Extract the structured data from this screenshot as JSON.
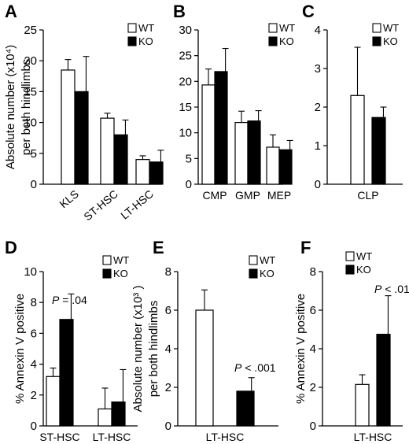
{
  "legend_labels": [
    "WT",
    "KO"
  ],
  "chart_data": [
    {
      "panel": "A",
      "type": "bar",
      "ylabel_line1": "Absolute number (x10⁴)",
      "ylabel_line2": "per both hindlimbs",
      "ylim": [
        0,
        25
      ],
      "yticks": [
        "0",
        "5",
        "10",
        "15",
        "20",
        "25"
      ],
      "categories": [
        "KLS",
        "ST-HSC",
        "LT-HSC"
      ],
      "series": [
        {
          "name": "WT",
          "values": [
            18.5,
            10.7,
            4.0
          ],
          "errors": [
            1.7,
            0.8,
            0.6
          ]
        },
        {
          "name": "KO",
          "values": [
            15.0,
            8.0,
            3.6
          ],
          "errors": [
            5.7,
            2.4,
            1.9
          ]
        }
      ],
      "xtick_rotation": -40,
      "annotation": ""
    },
    {
      "panel": "B",
      "type": "bar",
      "ylabel_line1": "",
      "ylabel_line2": "",
      "ylim": [
        0,
        30
      ],
      "yticks": [
        "0",
        "5",
        "10",
        "15",
        "20",
        "25",
        "30"
      ],
      "categories": [
        "CMP",
        "GMP",
        "MEP"
      ],
      "series": [
        {
          "name": "WT",
          "values": [
            19.3,
            12.0,
            7.2
          ],
          "errors": [
            3.1,
            2.2,
            2.4
          ]
        },
        {
          "name": "KO",
          "values": [
            21.9,
            12.3,
            6.7
          ],
          "errors": [
            4.5,
            2.0,
            1.8
          ]
        }
      ],
      "xtick_rotation": 0,
      "annotation": ""
    },
    {
      "panel": "C",
      "type": "bar",
      "ylabel_line1": "",
      "ylabel_line2": "",
      "ylim": [
        0,
        4
      ],
      "yticks": [
        "0",
        "1",
        "2",
        "3",
        "4"
      ],
      "categories": [
        "CLP"
      ],
      "series": [
        {
          "name": "WT",
          "values": [
            2.3
          ],
          "errors": [
            1.25
          ]
        },
        {
          "name": "KO",
          "values": [
            1.73
          ],
          "errors": [
            0.27
          ]
        }
      ],
      "xtick_rotation": 0,
      "annotation": ""
    },
    {
      "panel": "D",
      "type": "bar",
      "ylabel_line1": "% Annexin V positive",
      "ylabel_line2": "",
      "ylim": [
        0,
        10
      ],
      "yticks": [
        "0",
        "2",
        "4",
        "6",
        "8",
        "10"
      ],
      "categories": [
        "ST-HSC",
        "LT-HSC"
      ],
      "series": [
        {
          "name": "WT",
          "values": [
            3.2,
            1.1
          ],
          "errors": [
            0.55,
            1.35
          ]
        },
        {
          "name": "KO",
          "values": [
            6.9,
            1.55
          ],
          "errors": [
            1.65,
            2.1
          ]
        }
      ],
      "xtick_rotation": 0,
      "annotation": "P = .04"
    },
    {
      "panel": "E",
      "type": "bar",
      "ylabel_line1": "Absolute number (x10³ )",
      "ylabel_line2": "per both hindlimbs",
      "ylim": [
        0,
        8
      ],
      "yticks": [
        "0",
        "2",
        "4",
        "6",
        "8"
      ],
      "categories": [
        "LT-HSC"
      ],
      "series": [
        {
          "name": "WT",
          "values": [
            6.0
          ],
          "errors": [
            1.05
          ]
        },
        {
          "name": "KO",
          "values": [
            1.8
          ],
          "errors": [
            0.7
          ]
        }
      ],
      "xtick_rotation": 0,
      "annotation": "P < .001"
    },
    {
      "panel": "F",
      "type": "bar",
      "ylabel_line1": "% Annexin V positive",
      "ylabel_line2": "",
      "ylim": [
        0,
        8
      ],
      "yticks": [
        "0",
        "2",
        "4",
        "6",
        "8"
      ],
      "categories": [
        "LT-HSC"
      ],
      "series": [
        {
          "name": "WT",
          "values": [
            2.15
          ],
          "errors": [
            0.5
          ]
        },
        {
          "name": "KO",
          "values": [
            4.75
          ],
          "errors": [
            2.0
          ]
        }
      ],
      "xtick_rotation": 0,
      "annotation": "P < .01"
    }
  ]
}
